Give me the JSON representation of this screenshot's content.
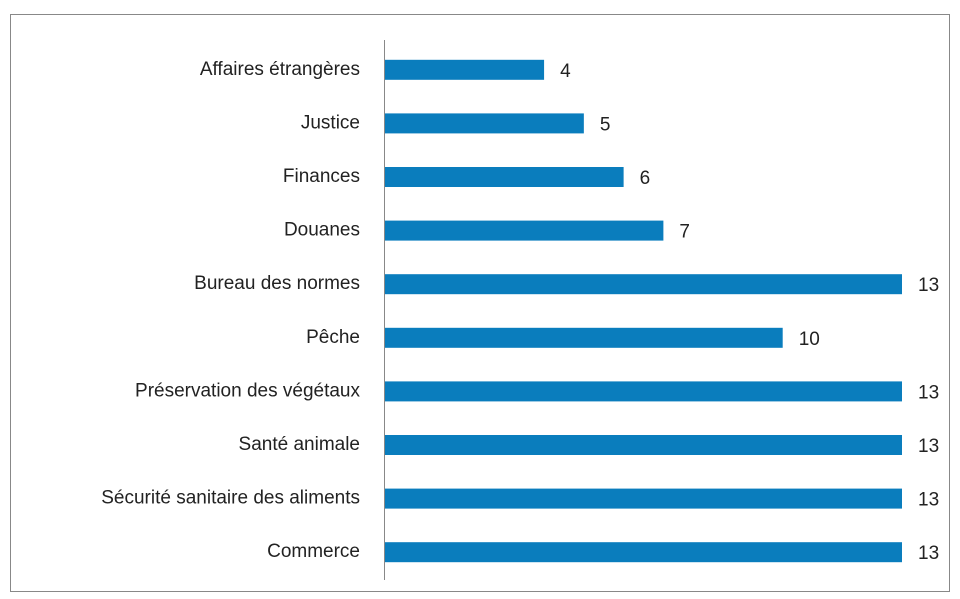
{
  "chart_data": {
    "type": "hbar",
    "categories": [
      "Affaires étrangères",
      "Justice",
      "Finances",
      "Douanes",
      "Bureau des normes",
      "Pêche",
      "Préservation des végétaux",
      "Santé animale",
      "Sécurité sanitaire des aliments",
      "Commerce"
    ],
    "values": [
      4,
      5,
      6,
      7,
      13,
      10,
      13,
      13,
      13,
      13
    ],
    "color": "#0a7dbd",
    "xlim": [
      0,
      13
    ]
  }
}
